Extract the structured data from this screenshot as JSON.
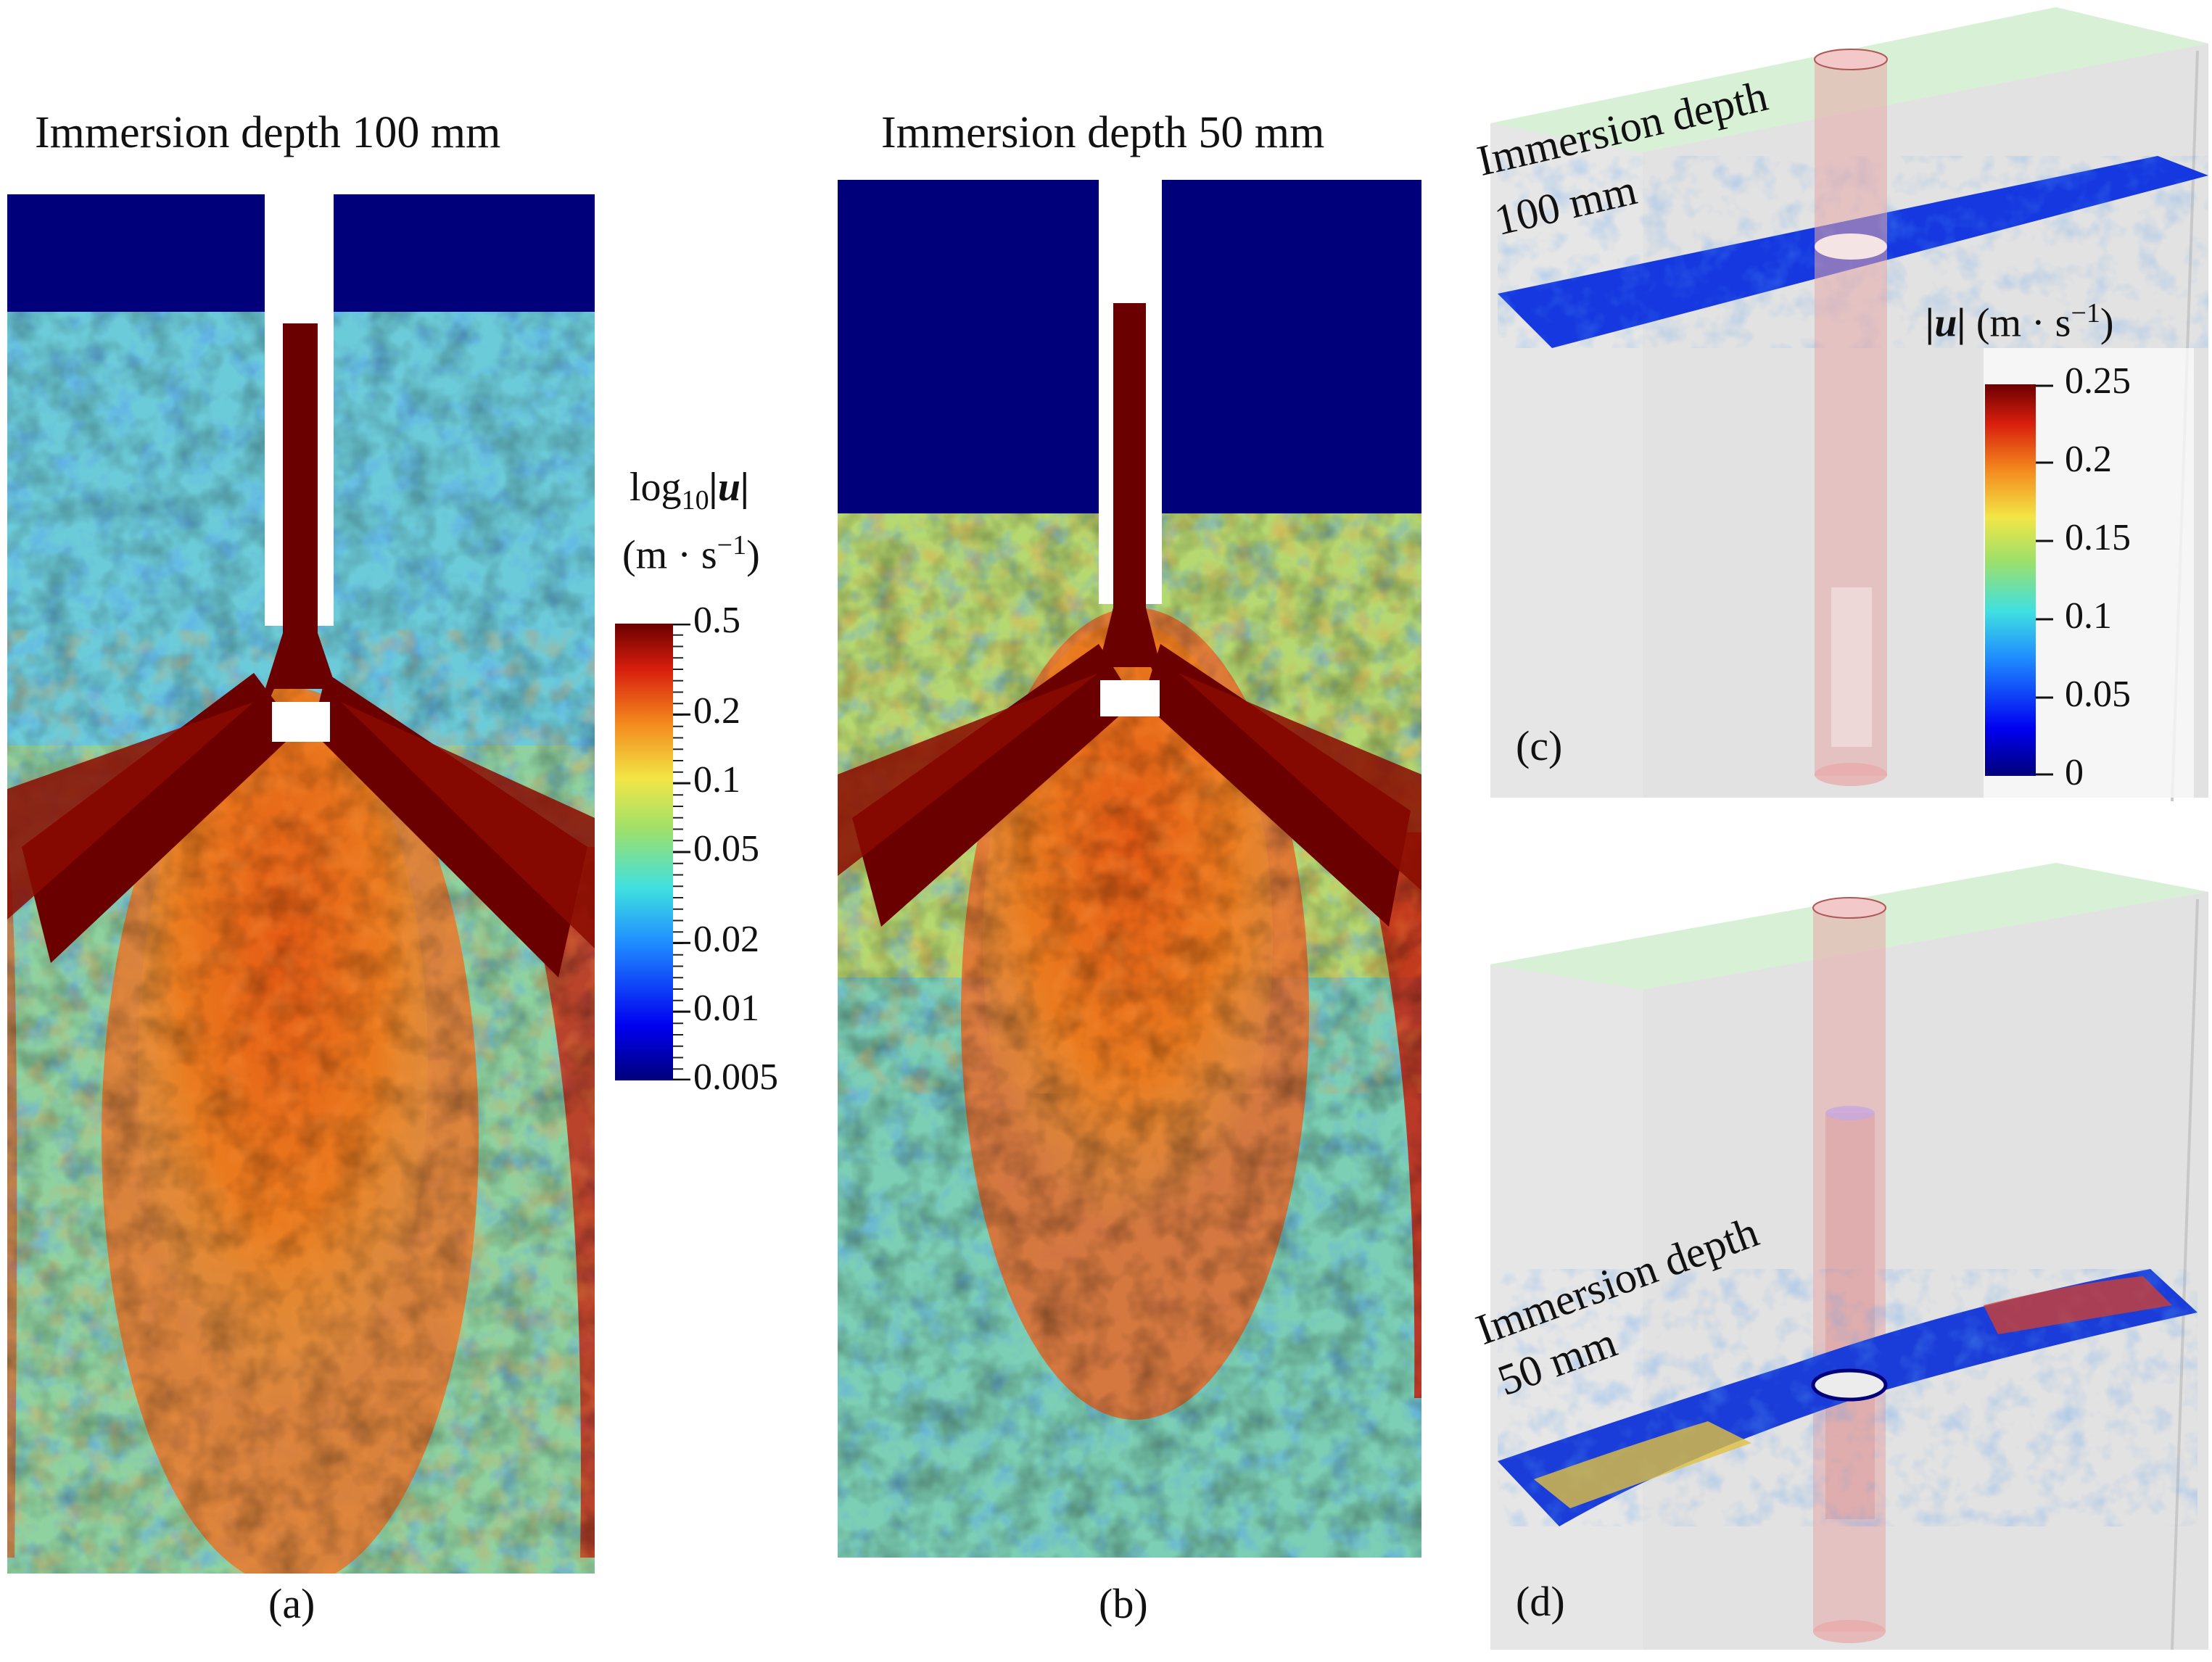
{
  "panel_a": {
    "title": "Immersion depth 100 mm",
    "caption": "(a)"
  },
  "panel_b": {
    "title": "Immersion depth 50 mm",
    "caption": "(b)"
  },
  "log_colorbar": {
    "label_line1_base": "log",
    "label_line1_sub": "10",
    "label_line1_var": "|u|",
    "label_line2": "(m · s",
    "label_line2_sup": "−1",
    "label_line2_end": ")",
    "ticks": [
      "0.5",
      "0.2",
      "0.1",
      "0.05",
      "0.02",
      "0.01",
      "0.005"
    ],
    "tick_values": [
      0.5,
      0.2,
      0.1,
      0.05,
      0.02,
      0.01,
      0.005
    ],
    "scale": "log"
  },
  "panel_c": {
    "label_line1": "Immersion depth",
    "label_line2": "100 mm",
    "caption": "(c)",
    "colorbar": {
      "label_var": "|u|",
      "label_units": "(m · s",
      "label_sup": "−1",
      "label_end": ")",
      "ticks": [
        "0.25",
        "0.2",
        "0.15",
        "0.1",
        "0.05",
        "0"
      ],
      "tick_values": [
        0.25,
        0.2,
        0.15,
        0.1,
        0.05,
        0
      ]
    }
  },
  "panel_d": {
    "label_line1": "Immersion depth",
    "label_line2": "50 mm",
    "caption": "(d)"
  },
  "colors": {
    "deep_blue": "#00007a",
    "blue": "#1a3cff",
    "cyan": "#3fc8e6",
    "green": "#8fd46a",
    "yellow": "#e6d64a",
    "orange": "#e8701e",
    "red": "#c4200e",
    "dark_red": "#6b0000",
    "tube": "#e8a7a7",
    "box_green": "#d8f0d6"
  }
}
